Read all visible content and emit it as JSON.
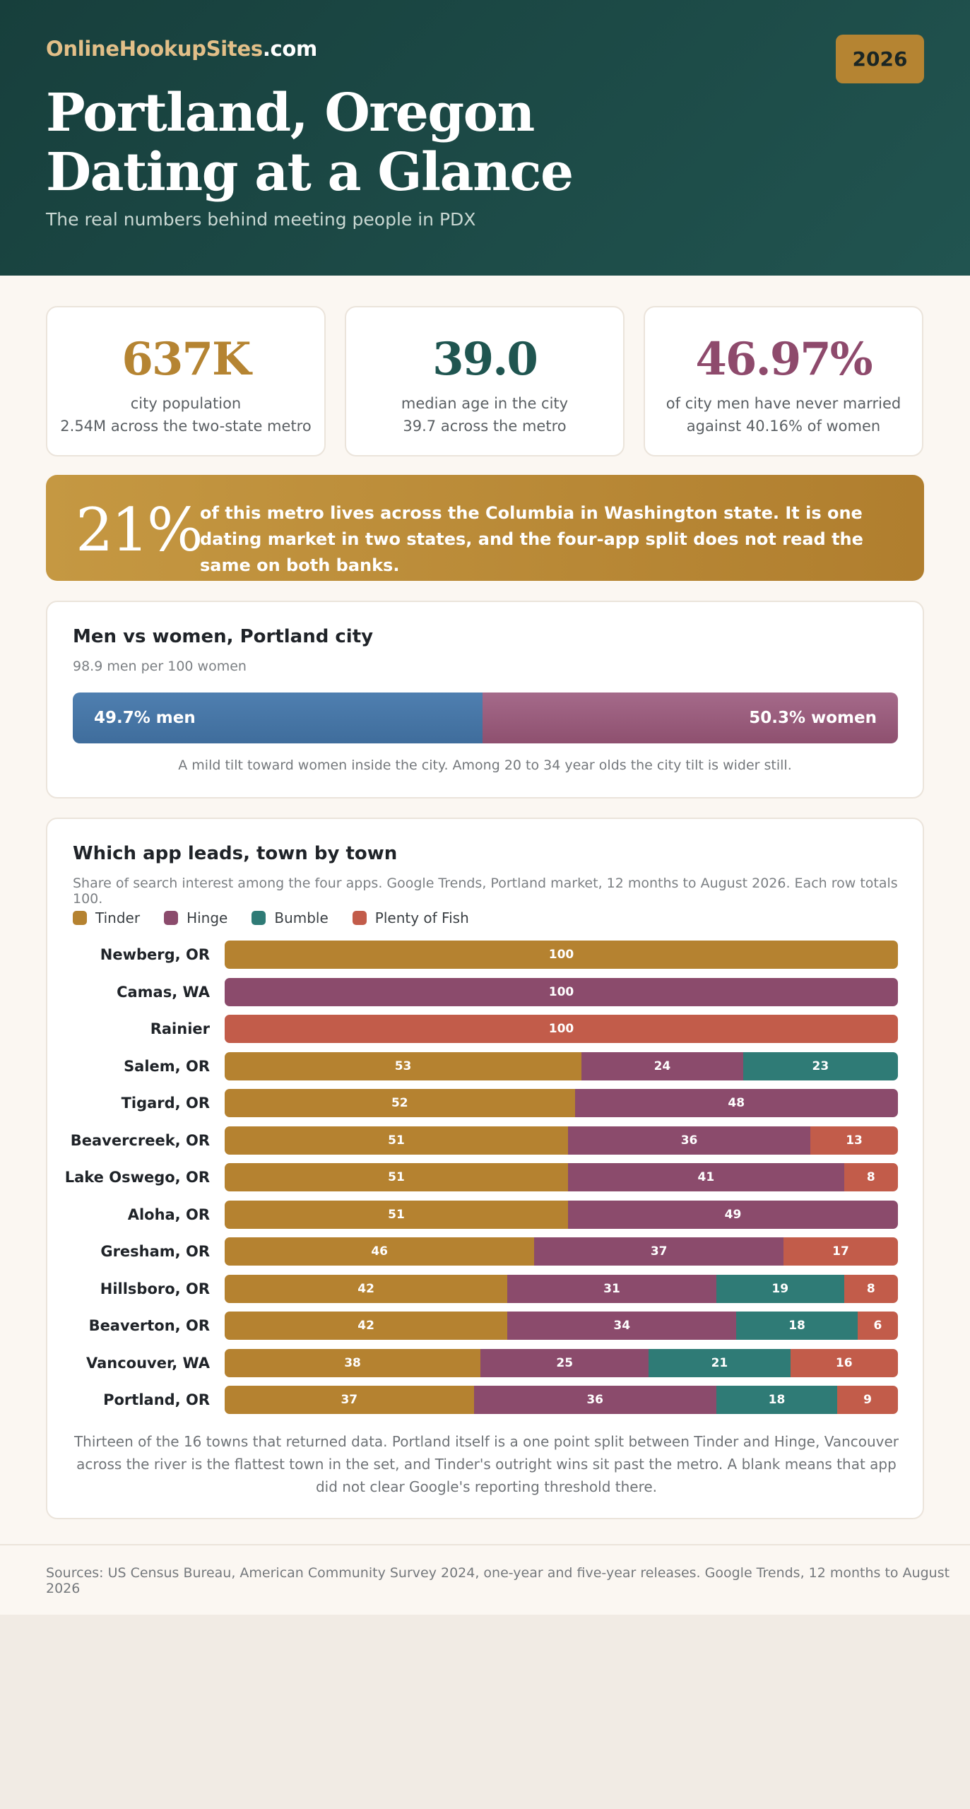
{
  "header": {
    "brand_main": "OnlineHookupSites",
    "brand_tld": ".com",
    "year_badge": "2026",
    "title_line1": "Portland, Oregon",
    "title_line2": "Dating at a Glance",
    "subtitle": "The real numbers behind meeting people in PDX"
  },
  "stats": [
    {
      "value": "637K",
      "line1": "city population",
      "line2": "2.54M across the two-state metro",
      "color": "#b58432"
    },
    {
      "value": "39.0",
      "line1": "median age in the city",
      "line2": "39.7 across the metro",
      "color": "#1f5550"
    },
    {
      "value": "46.97%",
      "line1": "of city men have never married",
      "line2": "against 40.16% of women",
      "color": "#8e4a6c"
    }
  ],
  "banner": {
    "big": "21%",
    "text": "of this metro lives across the Columbia in Washington state. It is one dating market in two states, and the four-app split does not read the same on both banks."
  },
  "gender": {
    "title": "Men vs women, Portland city",
    "note": "98.9 men per 100 women",
    "men_share": 49.7,
    "men_label": "49.7% men",
    "women_label": "50.3% women",
    "caption": "A mild tilt toward women inside the city. Among 20 to 34 year olds the city tilt is wider still."
  },
  "apps": {
    "title": "Which app leads, town by town",
    "note": "Share of search interest among the four apps. Google Trends, Portland market, 12 months to August 2026. Each row totals 100.",
    "caption": "Thirteen of the 16 towns that returned data. Portland itself is a one point split between Tinder and Hinge, Vancouver across the river is the flattest town in the set, and Tinder's outright wins sit past the metro. A blank means that app did not clear Google's reporting threshold there."
  },
  "colors": {
    "tinder": "#b58230",
    "hinge": "#8b4b6c",
    "bumble": "#2f7b76",
    "pof": "#c25c4a"
  },
  "chart_data": {
    "type": "bar",
    "stacked": true,
    "orientation": "horizontal",
    "title": "Which app leads, town by town",
    "categories": [
      "Newberg, OR",
      "Camas, WA",
      "Rainier",
      "Salem, OR",
      "Tigard, OR",
      "Beavercreek, OR",
      "Lake Oswego, OR",
      "Aloha, OR",
      "Gresham, OR",
      "Hillsboro, OR",
      "Beaverton, OR",
      "Vancouver, WA",
      "Portland, OR"
    ],
    "series": [
      {
        "name": "Tinder",
        "color": "#b58230",
        "values": [
          100,
          0,
          0,
          53,
          52,
          51,
          51,
          51,
          46,
          42,
          42,
          38,
          37
        ]
      },
      {
        "name": "Hinge",
        "color": "#8b4b6c",
        "values": [
          0,
          100,
          0,
          24,
          48,
          36,
          41,
          49,
          37,
          31,
          34,
          25,
          36
        ]
      },
      {
        "name": "Bumble",
        "color": "#2f7b76",
        "values": [
          0,
          0,
          0,
          23,
          0,
          0,
          0,
          0,
          0,
          19,
          18,
          21,
          18
        ]
      },
      {
        "name": "Plenty of Fish",
        "color": "#c25c4a",
        "values": [
          0,
          0,
          100,
          0,
          0,
          13,
          8,
          0,
          17,
          8,
          6,
          16,
          9
        ]
      }
    ],
    "xlim": [
      0,
      100
    ],
    "legend": "top-left"
  },
  "footer": {
    "sources": "Sources: US Census Bureau, American Community Survey 2024, one-year and five-year releases. Google Trends, 12 months to August 2026"
  }
}
